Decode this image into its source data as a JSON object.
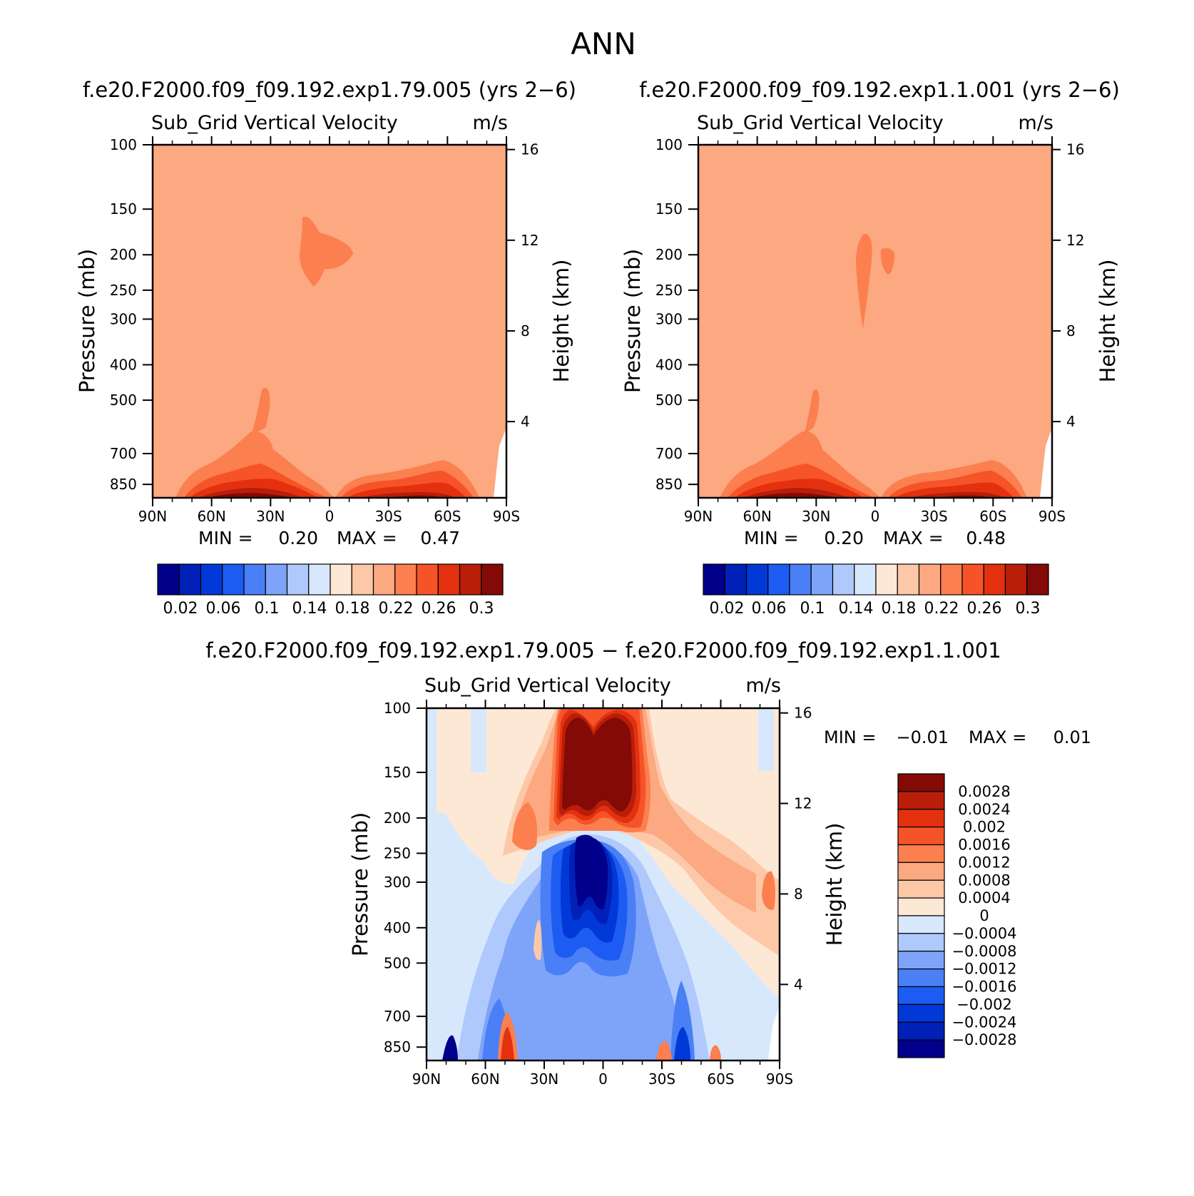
{
  "figure": {
    "title": "ANN"
  },
  "colors": {
    "level_scale": [
      "#00008b",
      "#0020b8",
      "#0039d8",
      "#1d5cf2",
      "#4a7ff6",
      "#7ea4fa",
      "#b0c9fc",
      "#d8e8fc",
      "#fde8d5",
      "#fdc8a8",
      "#fca881",
      "#fb7f4f",
      "#f65329",
      "#e33110",
      "#b81e0a",
      "#830a06"
    ],
    "diff_scale": [
      "#00008b",
      "#0020b8",
      "#0039d8",
      "#1d5cf2",
      "#4a7ff6",
      "#7ea4fa",
      "#b0c9fc",
      "#d8e8fc",
      "#fde8d5",
      "#fdc8a8",
      "#fca881",
      "#fb7f4f",
      "#f65329",
      "#e33110",
      "#b81e0a",
      "#830a06"
    ],
    "field_fill": "#fca881"
  },
  "chart_data": [
    {
      "type": "contour",
      "case_title": "f.e20.F2000.f09_f09.192.exp1.79.005 (yrs 2−6)",
      "title": "Sub_Grid Vertical Velocity",
      "units": "m/s",
      "ylabel": "Pressure (mb)",
      "ylabel_right": "Height (km)",
      "x_ticks": [
        "90N",
        "60N",
        "30N",
        "0",
        "30S",
        "60S",
        "90S"
      ],
      "x_range": [
        90,
        -90
      ],
      "y_ticks": [
        "100",
        "150",
        "200",
        "250",
        "300",
        "400",
        "500",
        "700",
        "850"
      ],
      "y_range_mb": [
        100,
        925
      ],
      "height_ticks": [
        "16",
        "12",
        "8",
        "4"
      ],
      "min_label": "MIN =",
      "min_value": "0.20",
      "max_label": "MAX =",
      "max_value": "0.47",
      "colorbar_labels": [
        "0.02",
        "0.06",
        "0.1",
        "0.14",
        "0.18",
        "0.22",
        "0.26",
        "0.3"
      ]
    },
    {
      "type": "contour",
      "case_title": "f.e20.F2000.f09_f09.192.exp1.1.001 (yrs 2−6)",
      "title": "Sub_Grid Vertical Velocity",
      "units": "m/s",
      "ylabel": "Pressure (mb)",
      "ylabel_right": "Height (km)",
      "x_ticks": [
        "90N",
        "60N",
        "30N",
        "0",
        "30S",
        "60S",
        "90S"
      ],
      "x_range": [
        90,
        -90
      ],
      "y_ticks": [
        "100",
        "150",
        "200",
        "250",
        "300",
        "400",
        "500",
        "700",
        "850"
      ],
      "y_range_mb": [
        100,
        925
      ],
      "height_ticks": [
        "16",
        "12",
        "8",
        "4"
      ],
      "min_label": "MIN =",
      "min_value": "0.20",
      "max_label": "MAX =",
      "max_value": "0.48",
      "colorbar_labels": [
        "0.02",
        "0.06",
        "0.1",
        "0.14",
        "0.18",
        "0.22",
        "0.26",
        "0.3"
      ]
    },
    {
      "type": "contour",
      "case_title": "f.e20.F2000.f09_f09.192.exp1.79.005 − f.e20.F2000.f09_f09.192.exp1.1.001",
      "title": "Sub_Grid Vertical Velocity",
      "units": "m/s",
      "ylabel": "Pressure (mb)",
      "ylabel_right": "Height (km)",
      "x_ticks": [
        "90N",
        "60N",
        "30N",
        "0",
        "30S",
        "60S",
        "90S"
      ],
      "x_range": [
        90,
        -90
      ],
      "y_ticks": [
        "100",
        "150",
        "200",
        "250",
        "300",
        "400",
        "500",
        "700",
        "850"
      ],
      "y_range_mb": [
        100,
        925
      ],
      "height_ticks": [
        "16",
        "12",
        "8",
        "4"
      ],
      "min_label": "MIN =",
      "min_value": "−0.01",
      "max_label": "MAX =",
      "max_value": "0.01",
      "colorbar_labels": [
        "0.0028",
        "0.0024",
        "0.002",
        "0.0016",
        "0.0012",
        "0.0008",
        "0.0004",
        "0",
        "−0.0004",
        "−0.0008",
        "−0.0012",
        "−0.0016",
        "−0.002",
        "−0.0024",
        "−0.0028"
      ]
    }
  ]
}
